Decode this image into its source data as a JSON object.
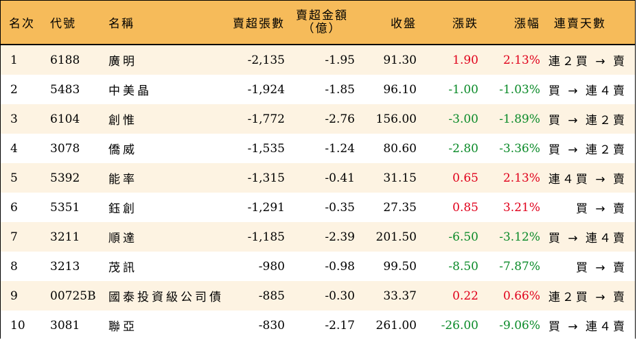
{
  "header": {
    "rank": "名次",
    "code": "代號",
    "name": "名稱",
    "net_sell_shares": "賣超張數",
    "net_sell_amount_line1": "賣超金額",
    "net_sell_amount_line2": "（億）",
    "close": "收盤",
    "change": "漲跌",
    "change_pct": "漲幅",
    "consecutive_days": "連賣天數"
  },
  "rows": [
    {
      "rank": "1",
      "code": "6188",
      "name": "廣明",
      "shares": "-2,135",
      "amount": "-1.95",
      "close": "91.30",
      "change": "1.90",
      "pct": "2.13%",
      "dir": "up",
      "streak": "連２買 → 賣"
    },
    {
      "rank": "2",
      "code": "5483",
      "name": "中美晶",
      "shares": "-1,924",
      "amount": "-1.85",
      "close": "96.10",
      "change": "-1.00",
      "pct": "-1.03%",
      "dir": "down",
      "streak": "買 → 連４賣"
    },
    {
      "rank": "3",
      "code": "6104",
      "name": "創惟",
      "shares": "-1,772",
      "amount": "-2.76",
      "close": "156.00",
      "change": "-3.00",
      "pct": "-1.89%",
      "dir": "down",
      "streak": "買 → 連２賣"
    },
    {
      "rank": "4",
      "code": "3078",
      "name": "僑威",
      "shares": "-1,535",
      "amount": "-1.24",
      "close": "80.60",
      "change": "-2.80",
      "pct": "-3.36%",
      "dir": "down",
      "streak": "買 → 連２賣"
    },
    {
      "rank": "5",
      "code": "5392",
      "name": "能率",
      "shares": "-1,315",
      "amount": "-0.41",
      "close": "31.15",
      "change": "0.65",
      "pct": "2.13%",
      "dir": "up",
      "streak": "連４買 → 賣"
    },
    {
      "rank": "6",
      "code": "5351",
      "name": "鈺創",
      "shares": "-1,291",
      "amount": "-0.35",
      "close": "27.35",
      "change": "0.85",
      "pct": "3.21%",
      "dir": "up",
      "streak": "買 → 賣"
    },
    {
      "rank": "7",
      "code": "3211",
      "name": "順達",
      "shares": "-1,185",
      "amount": "-2.39",
      "close": "201.50",
      "change": "-6.50",
      "pct": "-3.12%",
      "dir": "down",
      "streak": "買 → 連４賣"
    },
    {
      "rank": "8",
      "code": "3213",
      "name": "茂訊",
      "shares": "-980",
      "amount": "-0.98",
      "close": "99.50",
      "change": "-8.50",
      "pct": "-7.87%",
      "dir": "down",
      "streak": "買 → 賣"
    },
    {
      "rank": "9",
      "code": "00725B",
      "name": "國泰投資級公司債",
      "shares": "-885",
      "amount": "-0.30",
      "close": "33.37",
      "change": "0.22",
      "pct": "0.66%",
      "dir": "up",
      "streak": "連２買 → 賣"
    },
    {
      "rank": "10",
      "code": "3081",
      "name": "聯亞",
      "shares": "-830",
      "amount": "-2.17",
      "close": "261.00",
      "change": "-26.00",
      "pct": "-9.06%",
      "dir": "down",
      "streak": "買 → 連４賣"
    }
  ],
  "colors": {
    "header_bg": "#f6bb5a",
    "odd_row_bg": "#fdf3e2",
    "even_row_bg": "#ffffff",
    "up": "#e0001b",
    "down": "#0a8a28"
  }
}
